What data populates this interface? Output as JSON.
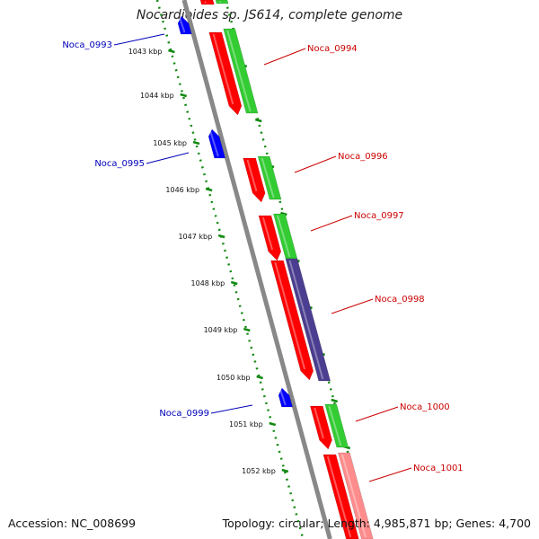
{
  "title": "Nocardioides sp. JS614, complete genome",
  "footer": {
    "accession": "Accession: NC_008699",
    "summary": "Topology: circular; Length: 4,985,871 bp; Genes: 4,700"
  },
  "colors": {
    "forward_gene": "#ff0000",
    "forward_gene_light": "#ff8c8c",
    "reverse_gene": "#0000ff",
    "go_annotation": "#33cc33",
    "go_annotation_dark": "#4b3d8f",
    "backbone": "#888888",
    "tick": "#138a13",
    "forward_label": "#cc0000",
    "reverse_label": "#0000bb"
  },
  "ticks": [
    "1043 kbp",
    "1044 kbp",
    "1045 kbp",
    "1046 kbp",
    "1047 kbp",
    "1048 kbp",
    "1049 kbp",
    "1050 kbp",
    "1051 kbp",
    "1052 kbp"
  ],
  "genes": {
    "forward": [
      "Noca_0994",
      "Noca_0996",
      "Noca_0997",
      "Noca_0998",
      "Noca_1000",
      "Noca_1001"
    ],
    "reverse": [
      "Noca_0993",
      "Noca_0995",
      "Noca_0999"
    ]
  }
}
